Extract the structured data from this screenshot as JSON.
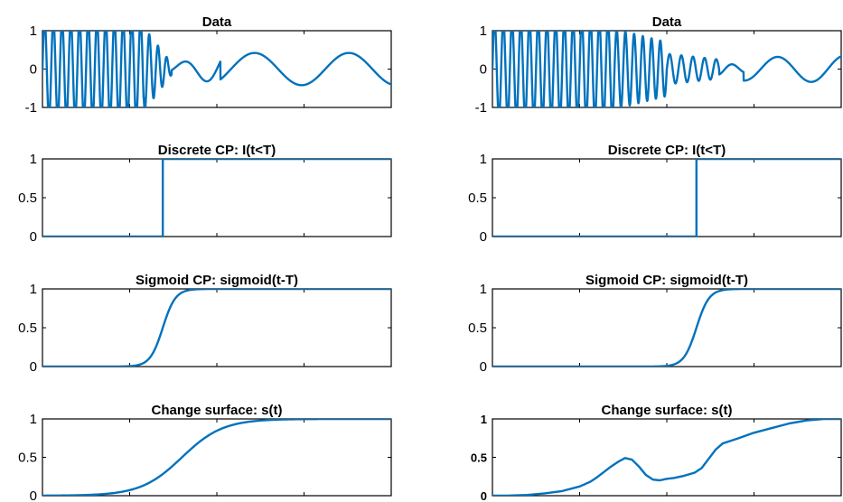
{
  "colors": {
    "line": "#0072BD",
    "axis": "#000000"
  },
  "chart_data": [
    {
      "type": "line",
      "column": "left",
      "row": 0,
      "title": "Data",
      "ylim": [
        -1,
        1
      ],
      "yticks": [
        {
          "v": 1,
          "label": "1"
        },
        {
          "v": 0,
          "label": "0"
        },
        {
          "v": -1,
          "label": "-1"
        }
      ],
      "xlim": [
        0,
        1
      ],
      "xtick_count": 5,
      "tick_labels_bold": false,
      "series": [
        {
          "kind": "signal",
          "segments": [
            {
              "x0": 0,
              "x1": 0.29,
              "freq": 40,
              "amp": [
                1.3,
                1.3
              ]
            },
            {
              "x0": 0.29,
              "x1": 0.37,
              "freq": 40,
              "amp": [
                1.1,
                0.15
              ]
            },
            {
              "x0": 0.37,
              "x1": 0.51,
              "freq": 8,
              "amp": [
                0.12,
                0.4
              ]
            },
            {
              "x0": 0.51,
              "x1": 1.0,
              "freq": 3.7,
              "amp": [
                0.42,
                0.42
              ]
            }
          ]
        }
      ]
    },
    {
      "type": "line",
      "column": "left",
      "row": 1,
      "title": "Discrete CP: I(t<T)",
      "ylim": [
        0,
        1
      ],
      "yticks": [
        {
          "v": 1,
          "label": "1"
        },
        {
          "v": 0.5,
          "label": "0.5"
        },
        {
          "v": 0,
          "label": "0"
        }
      ],
      "xlim": [
        0,
        1
      ],
      "xtick_count": 5,
      "tick_labels_bold": false,
      "series": [
        {
          "kind": "step",
          "x": [
            0,
            0.345,
            0.345,
            1
          ],
          "y": [
            0,
            0,
            1,
            1
          ]
        }
      ]
    },
    {
      "type": "line",
      "column": "left",
      "row": 2,
      "title": "Sigmoid CP: sigmoid(t-T)",
      "ylim": [
        0,
        1
      ],
      "yticks": [
        {
          "v": 1,
          "label": "1"
        },
        {
          "v": 0.5,
          "label": "0.5"
        },
        {
          "v": 0,
          "label": "0"
        }
      ],
      "xlim": [
        0,
        1
      ],
      "xtick_count": 5,
      "tick_labels_bold": false,
      "series": [
        {
          "kind": "sigmoid",
          "center": 0.345,
          "scale": 55
        }
      ]
    },
    {
      "type": "line",
      "column": "left",
      "row": 3,
      "title": "Change surface: s(t)",
      "ylim": [
        0,
        1
      ],
      "yticks": [
        {
          "v": 1,
          "label": "1"
        },
        {
          "v": 0.5,
          "label": "0.5"
        },
        {
          "v": 0,
          "label": "0"
        }
      ],
      "xlim": [
        0,
        1
      ],
      "xtick_count": 5,
      "tick_labels_bold": false,
      "series": [
        {
          "kind": "sigmoid",
          "center": 0.4,
          "scale": 17
        }
      ]
    },
    {
      "type": "line",
      "column": "right",
      "row": 0,
      "title": "Data",
      "ylim": [
        -1,
        1
      ],
      "yticks": [
        {
          "v": 1,
          "label": "1"
        },
        {
          "v": 0,
          "label": "0"
        },
        {
          "v": -1,
          "label": "-1"
        }
      ],
      "xlim": [
        0,
        1
      ],
      "xtick_count": 5,
      "tick_labels_bold": false,
      "series": [
        {
          "kind": "signal",
          "segments": [
            {
              "x0": 0,
              "x1": 0.35,
              "freq": 40,
              "amp": [
                1.3,
                1.3
              ]
            },
            {
              "x0": 0.35,
              "x1": 0.5,
              "freq": 40,
              "amp": [
                1.05,
                0.7
              ]
            },
            {
              "x0": 0.5,
              "x1": 0.65,
              "freq": 30,
              "amp": [
                0.4,
                0.25
              ]
            },
            {
              "x0": 0.65,
              "x1": 0.72,
              "freq": 12,
              "amp": [
                0.15,
                0.1
              ]
            },
            {
              "x0": 0.72,
              "x1": 1.0,
              "freq": 5.2,
              "amp": [
                0.3,
                0.35
              ]
            }
          ]
        }
      ]
    },
    {
      "type": "line",
      "column": "right",
      "row": 1,
      "title": "Discrete CP: I(t<T)",
      "ylim": [
        0,
        1
      ],
      "yticks": [
        {
          "v": 1,
          "label": "1"
        },
        {
          "v": 0.5,
          "label": "0.5"
        },
        {
          "v": 0,
          "label": "0"
        }
      ],
      "xlim": [
        0,
        1
      ],
      "xtick_count": 5,
      "tick_labels_bold": false,
      "series": [
        {
          "kind": "step",
          "x": [
            0,
            0.585,
            0.585,
            1
          ],
          "y": [
            0,
            0,
            1,
            1
          ]
        }
      ]
    },
    {
      "type": "line",
      "column": "right",
      "row": 2,
      "title": "Sigmoid CP: sigmoid(t-T)",
      "ylim": [
        0,
        1
      ],
      "yticks": [
        {
          "v": 1,
          "label": "1"
        },
        {
          "v": 0.5,
          "label": "0.5"
        },
        {
          "v": 0,
          "label": "0"
        }
      ],
      "xlim": [
        0,
        1
      ],
      "xtick_count": 5,
      "tick_labels_bold": false,
      "series": [
        {
          "kind": "sigmoid",
          "center": 0.585,
          "scale": 55
        }
      ]
    },
    {
      "type": "line",
      "column": "right",
      "row": 3,
      "title": "Change surface: s(t)",
      "ylim": [
        0,
        1
      ],
      "yticks": [
        {
          "v": 1,
          "label": "1"
        },
        {
          "v": 0.5,
          "label": "0.5"
        },
        {
          "v": 0,
          "label": "0"
        }
      ],
      "xlim": [
        0,
        1
      ],
      "xtick_count": 5,
      "tick_labels_bold": true,
      "series": [
        {
          "kind": "points",
          "x": [
            0,
            0.05,
            0.1,
            0.15,
            0.2,
            0.25,
            0.28,
            0.3,
            0.32,
            0.34,
            0.36,
            0.38,
            0.4,
            0.42,
            0.44,
            0.46,
            0.48,
            0.5,
            0.52,
            0.55,
            0.58,
            0.6,
            0.62,
            0.64,
            0.66,
            0.68,
            0.7,
            0.75,
            0.8,
            0.85,
            0.9,
            0.95,
            1.0
          ],
          "y": [
            0,
            0.002,
            0.01,
            0.03,
            0.06,
            0.12,
            0.18,
            0.24,
            0.31,
            0.38,
            0.44,
            0.49,
            0.47,
            0.38,
            0.27,
            0.21,
            0.2,
            0.22,
            0.23,
            0.26,
            0.3,
            0.36,
            0.48,
            0.6,
            0.68,
            0.71,
            0.74,
            0.82,
            0.88,
            0.94,
            0.98,
            1.0,
            1.0
          ]
        }
      ]
    }
  ]
}
